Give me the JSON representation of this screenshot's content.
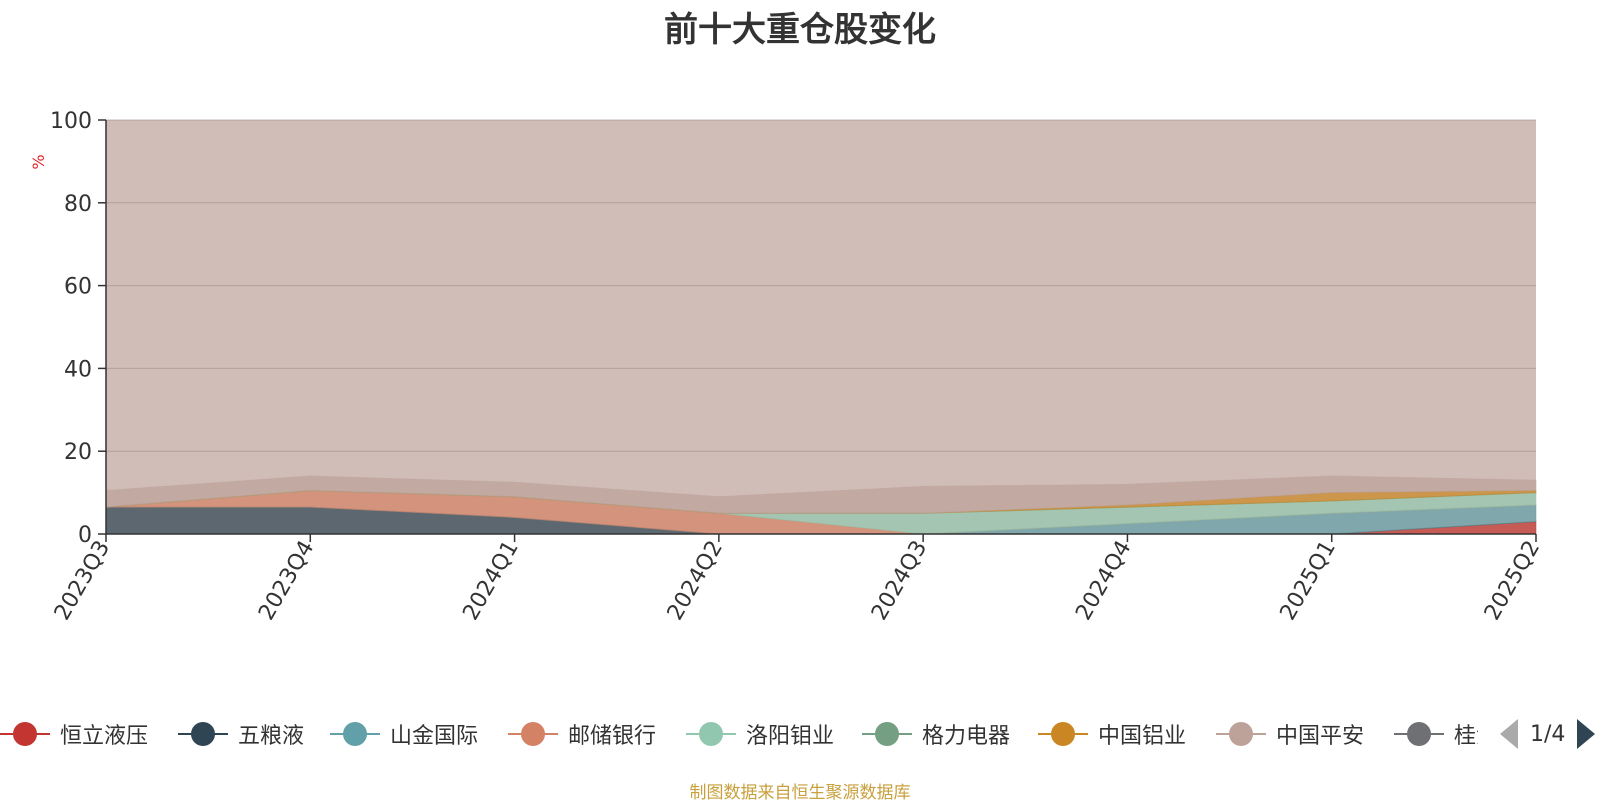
{
  "chart_data": {
    "type": "area",
    "title": "前十大重仓股变化",
    "ylabel": "%",
    "ylim": [
      0,
      100
    ],
    "yticks": [
      0,
      20,
      40,
      60,
      80,
      100
    ],
    "categories": [
      "2023Q3",
      "2023Q4",
      "2024Q1",
      "2024Q2",
      "2024Q3",
      "2024Q4",
      "2025Q1",
      "2025Q2"
    ],
    "stacked": true,
    "series": [
      {
        "name": "恒立液压",
        "color": "#c23531",
        "values": [
          0,
          0,
          0,
          0,
          0,
          0,
          0,
          3
        ]
      },
      {
        "name": "五粮液",
        "color": "#2f4554",
        "values": [
          6.5,
          6.5,
          4,
          0,
          0,
          0,
          0,
          0
        ]
      },
      {
        "name": "山金国际",
        "color": "#61a0a8",
        "values": [
          0,
          0,
          0,
          0,
          0,
          2.5,
          5,
          4
        ]
      },
      {
        "name": "邮储银行",
        "color": "#d48265",
        "values": [
          0,
          4,
          5,
          5,
          0,
          0,
          0,
          0
        ]
      },
      {
        "name": "洛阳钼业",
        "color": "#91c7ae",
        "values": [
          0,
          0,
          0,
          0,
          5,
          4,
          3,
          3
        ]
      },
      {
        "name": "格力电器",
        "color": "#749f83",
        "values": [
          0,
          0,
          0,
          0,
          0,
          0,
          0,
          0
        ]
      },
      {
        "name": "中国铝业",
        "color": "#ca8622",
        "values": [
          0,
          0,
          0,
          0,
          0,
          0.5,
          2,
          0.5
        ]
      },
      {
        "name": "中国平安",
        "color": "#bda29a",
        "values": [
          4,
          3.5,
          3.5,
          4,
          6.5,
          5,
          4,
          2.5
        ]
      }
    ],
    "grid": true
  },
  "legend": {
    "items": [
      {
        "name": "恒立液压",
        "color": "#c23531"
      },
      {
        "name": "五粮液",
        "color": "#2f4554"
      },
      {
        "name": "山金国际",
        "color": "#61a0a8"
      },
      {
        "name": "邮储银行",
        "color": "#d48265"
      },
      {
        "name": "洛阳钼业",
        "color": "#91c7ae"
      },
      {
        "name": "格力电器",
        "color": "#749f83"
      },
      {
        "name": "中国铝业",
        "color": "#ca8622"
      },
      {
        "name": "中国平安",
        "color": "#bda29a"
      },
      {
        "name": "桂浮",
        "color": "#6e7074"
      }
    ],
    "page": "1/4"
  },
  "source_note": "制图数据来自恒生聚源数据库",
  "colors": {
    "title": "#333333",
    "axis_label_red": "#e0262b",
    "source_note": "#c8a03c",
    "background_area": "#d0bdb7"
  }
}
